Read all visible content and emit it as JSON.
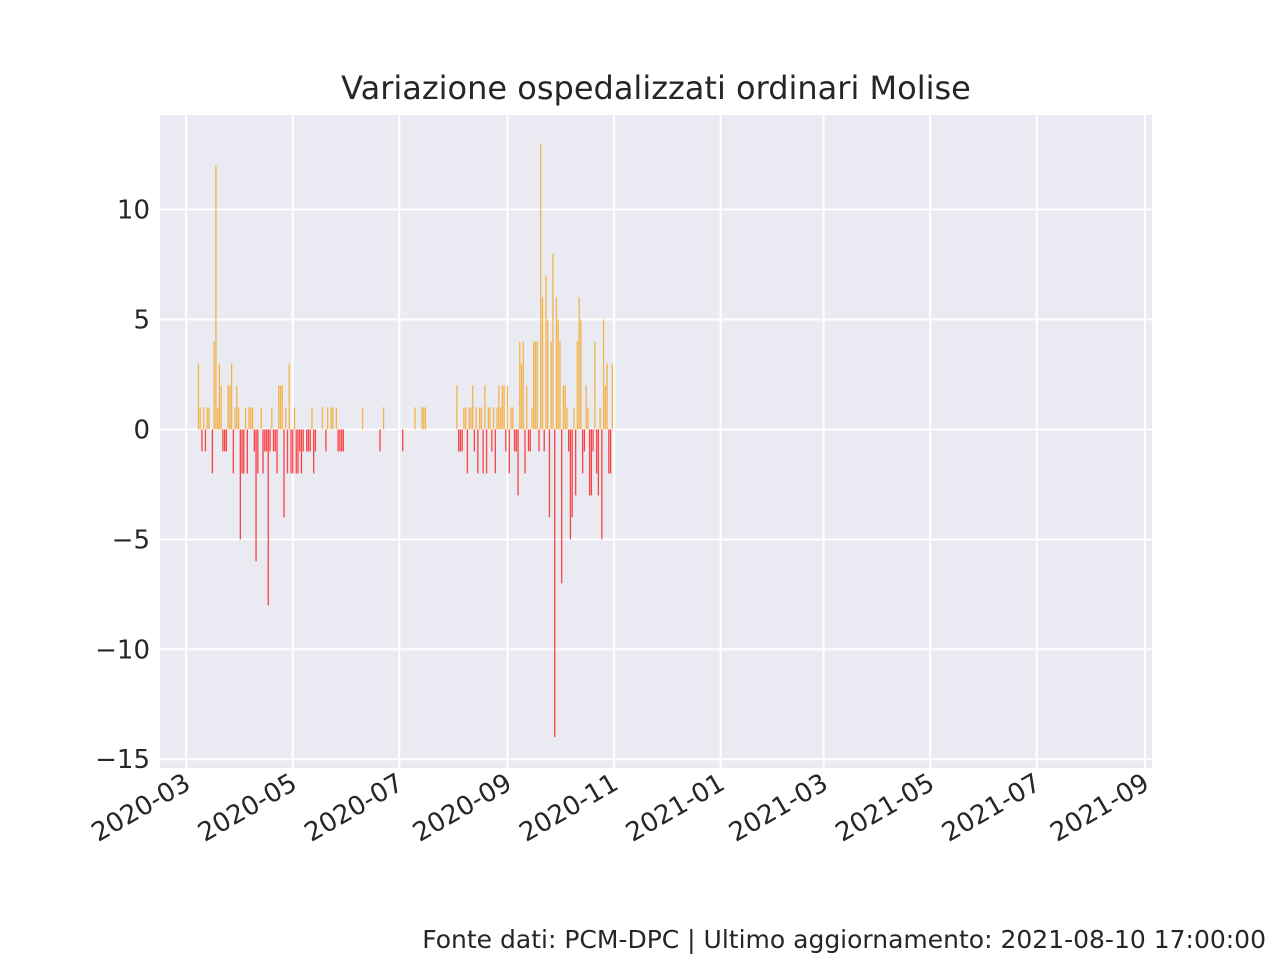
{
  "chart_data": {
    "type": "bar",
    "title": "Variazione ospedalizzati ordinari Molise",
    "xlabel": "",
    "ylabel": "",
    "x_axis": "date",
    "xlim": [
      "2020-02-15",
      "2021-09-05"
    ],
    "ylim": [
      -15.4,
      14.3
    ],
    "x_tick_labels": [
      "2020-03",
      "2020-05",
      "2020-07",
      "2020-09",
      "2020-11",
      "2021-01",
      "2021-03",
      "2021-05",
      "2021-07",
      "2021-09"
    ],
    "y_tick_values": [
      -15,
      -10,
      -5,
      0,
      5,
      10
    ],
    "y_tick_labels": [
      "−15",
      "−10",
      "−5",
      "0",
      "5",
      "10"
    ],
    "grid": true,
    "legend": "none",
    "colors": {
      "positive": "#f5a623",
      "negative": "#ff1a1a",
      "background": "#eaeaf2",
      "grid": "#ffffff"
    },
    "series": [
      {
        "values": [
          {
            "date": "2020-03-08",
            "value": 3
          },
          {
            "date": "2020-03-09",
            "value": 1
          },
          {
            "date": "2020-03-10",
            "value": -1
          },
          {
            "date": "2020-03-11",
            "value": 1
          },
          {
            "date": "2020-03-12",
            "value": -1
          },
          {
            "date": "2020-03-13",
            "value": 1
          },
          {
            "date": "2020-03-14",
            "value": 1
          },
          {
            "date": "2020-03-16",
            "value": -2
          },
          {
            "date": "2020-03-17",
            "value": 4
          },
          {
            "date": "2020-03-18",
            "value": 12
          },
          {
            "date": "2020-03-19",
            "value": 1
          },
          {
            "date": "2020-03-20",
            "value": 3
          },
          {
            "date": "2020-03-21",
            "value": 2
          },
          {
            "date": "2020-03-22",
            "value": -1
          },
          {
            "date": "2020-03-23",
            "value": -1
          },
          {
            "date": "2020-03-24",
            "value": -1
          },
          {
            "date": "2020-03-25",
            "value": 2
          },
          {
            "date": "2020-03-26",
            "value": 2
          },
          {
            "date": "2020-03-27",
            "value": 3
          },
          {
            "date": "2020-03-28",
            "value": -2
          },
          {
            "date": "2020-03-29",
            "value": 1
          },
          {
            "date": "2020-03-30",
            "value": 2
          },
          {
            "date": "2020-03-31",
            "value": 1
          },
          {
            "date": "2020-04-01",
            "value": -5
          },
          {
            "date": "2020-04-02",
            "value": -2
          },
          {
            "date": "2020-04-03",
            "value": -2
          },
          {
            "date": "2020-04-04",
            "value": 1
          },
          {
            "date": "2020-04-05",
            "value": -2
          },
          {
            "date": "2020-04-06",
            "value": 1
          },
          {
            "date": "2020-04-07",
            "value": 1
          },
          {
            "date": "2020-04-08",
            "value": 1
          },
          {
            "date": "2020-04-09",
            "value": -1
          },
          {
            "date": "2020-04-10",
            "value": -6
          },
          {
            "date": "2020-04-11",
            "value": -2
          },
          {
            "date": "2020-04-13",
            "value": 1
          },
          {
            "date": "2020-04-14",
            "value": -2
          },
          {
            "date": "2020-04-15",
            "value": -1
          },
          {
            "date": "2020-04-16",
            "value": -1
          },
          {
            "date": "2020-04-17",
            "value": -8
          },
          {
            "date": "2020-04-18",
            "value": -1
          },
          {
            "date": "2020-04-19",
            "value": 1
          },
          {
            "date": "2020-04-20",
            "value": -1
          },
          {
            "date": "2020-04-21",
            "value": -1
          },
          {
            "date": "2020-04-22",
            "value": -2
          },
          {
            "date": "2020-04-23",
            "value": 2
          },
          {
            "date": "2020-04-24",
            "value": 2
          },
          {
            "date": "2020-04-25",
            "value": 2
          },
          {
            "date": "2020-04-26",
            "value": -4
          },
          {
            "date": "2020-04-27",
            "value": 1
          },
          {
            "date": "2020-04-28",
            "value": -2
          },
          {
            "date": "2020-04-29",
            "value": 3
          },
          {
            "date": "2020-04-30",
            "value": -2
          },
          {
            "date": "2020-05-01",
            "value": -2
          },
          {
            "date": "2020-05-02",
            "value": 1
          },
          {
            "date": "2020-05-03",
            "value": -2
          },
          {
            "date": "2020-05-04",
            "value": -2
          },
          {
            "date": "2020-05-05",
            "value": -1
          },
          {
            "date": "2020-05-06",
            "value": -2
          },
          {
            "date": "2020-05-07",
            "value": -1
          },
          {
            "date": "2020-05-09",
            "value": -1
          },
          {
            "date": "2020-05-10",
            "value": -1
          },
          {
            "date": "2020-05-11",
            "value": -1
          },
          {
            "date": "2020-05-12",
            "value": 1
          },
          {
            "date": "2020-05-13",
            "value": -2
          },
          {
            "date": "2020-05-14",
            "value": -1
          },
          {
            "date": "2020-05-18",
            "value": 1
          },
          {
            "date": "2020-05-20",
            "value": -1
          },
          {
            "date": "2020-05-21",
            "value": 1
          },
          {
            "date": "2020-05-23",
            "value": 1
          },
          {
            "date": "2020-05-24",
            "value": 1
          },
          {
            "date": "2020-05-26",
            "value": 1
          },
          {
            "date": "2020-05-27",
            "value": -1
          },
          {
            "date": "2020-05-28",
            "value": -1
          },
          {
            "date": "2020-05-29",
            "value": -1
          },
          {
            "date": "2020-05-30",
            "value": -1
          },
          {
            "date": "2020-06-10",
            "value": 1
          },
          {
            "date": "2020-06-20",
            "value": -1
          },
          {
            "date": "2020-06-22",
            "value": 1
          },
          {
            "date": "2020-07-03",
            "value": -1
          },
          {
            "date": "2020-07-10",
            "value": 1
          },
          {
            "date": "2020-07-14",
            "value": 1
          },
          {
            "date": "2020-07-15",
            "value": 1
          },
          {
            "date": "2020-07-16",
            "value": 1
          },
          {
            "date": "2020-08-03",
            "value": 2
          },
          {
            "date": "2020-08-04",
            "value": -1
          },
          {
            "date": "2020-08-05",
            "value": -1
          },
          {
            "date": "2020-08-06",
            "value": -1
          },
          {
            "date": "2020-08-07",
            "value": 1
          },
          {
            "date": "2020-08-08",
            "value": 1
          },
          {
            "date": "2020-08-09",
            "value": -2
          },
          {
            "date": "2020-08-10",
            "value": 1
          },
          {
            "date": "2020-08-11",
            "value": 1
          },
          {
            "date": "2020-08-12",
            "value": 2
          },
          {
            "date": "2020-08-13",
            "value": -1
          },
          {
            "date": "2020-08-14",
            "value": 1
          },
          {
            "date": "2020-08-15",
            "value": -2
          },
          {
            "date": "2020-08-16",
            "value": 1
          },
          {
            "date": "2020-08-17",
            "value": 1
          },
          {
            "date": "2020-08-18",
            "value": -2
          },
          {
            "date": "2020-08-19",
            "value": 2
          },
          {
            "date": "2020-08-20",
            "value": -2
          },
          {
            "date": "2020-08-21",
            "value": 1
          },
          {
            "date": "2020-08-22",
            "value": 1
          },
          {
            "date": "2020-08-23",
            "value": -1
          },
          {
            "date": "2020-08-24",
            "value": 1
          },
          {
            "date": "2020-08-25",
            "value": -2
          },
          {
            "date": "2020-08-26",
            "value": 1
          },
          {
            "date": "2020-08-27",
            "value": 2
          },
          {
            "date": "2020-08-28",
            "value": 1
          },
          {
            "date": "2020-08-29",
            "value": 2
          },
          {
            "date": "2020-08-30",
            "value": 2
          },
          {
            "date": "2020-08-31",
            "value": -1
          },
          {
            "date": "2020-09-01",
            "value": 2
          },
          {
            "date": "2020-09-02",
            "value": -2
          },
          {
            "date": "2020-09-03",
            "value": 1
          },
          {
            "date": "2020-09-04",
            "value": 1
          },
          {
            "date": "2020-09-05",
            "value": -1
          },
          {
            "date": "2020-09-06",
            "value": -1
          },
          {
            "date": "2020-09-07",
            "value": -3
          },
          {
            "date": "2020-09-08",
            "value": 4
          },
          {
            "date": "2020-09-09",
            "value": 3
          },
          {
            "date": "2020-09-10",
            "value": 4
          },
          {
            "date": "2020-09-11",
            "value": -2
          },
          {
            "date": "2020-09-12",
            "value": 2
          },
          {
            "date": "2020-09-13",
            "value": -1
          },
          {
            "date": "2020-09-14",
            "value": -1
          },
          {
            "date": "2020-09-15",
            "value": 1
          },
          {
            "date": "2020-09-16",
            "value": 4
          },
          {
            "date": "2020-09-17",
            "value": 4
          },
          {
            "date": "2020-09-18",
            "value": 4
          },
          {
            "date": "2020-09-19",
            "value": -1
          },
          {
            "date": "2020-09-20",
            "value": 13
          },
          {
            "date": "2020-09-21",
            "value": 6
          },
          {
            "date": "2020-09-22",
            "value": -1
          },
          {
            "date": "2020-09-23",
            "value": 7
          },
          {
            "date": "2020-09-24",
            "value": 5
          },
          {
            "date": "2020-09-25",
            "value": -4
          },
          {
            "date": "2020-09-26",
            "value": 4
          },
          {
            "date": "2020-09-27",
            "value": 8
          },
          {
            "date": "2020-09-28",
            "value": -14
          },
          {
            "date": "2020-09-29",
            "value": 6
          },
          {
            "date": "2020-09-30",
            "value": 5
          },
          {
            "date": "2020-10-01",
            "value": 4
          },
          {
            "date": "2020-10-02",
            "value": -7
          },
          {
            "date": "2020-10-03",
            "value": 2
          },
          {
            "date": "2020-10-04",
            "value": 2
          },
          {
            "date": "2020-10-05",
            "value": 1
          },
          {
            "date": "2020-10-06",
            "value": -1
          },
          {
            "date": "2020-10-07",
            "value": -5
          },
          {
            "date": "2020-10-08",
            "value": -4
          },
          {
            "date": "2020-10-09",
            "value": 1
          },
          {
            "date": "2020-10-10",
            "value": -3
          },
          {
            "date": "2020-10-11",
            "value": 4
          },
          {
            "date": "2020-10-12",
            "value": 6
          },
          {
            "date": "2020-10-13",
            "value": 5
          },
          {
            "date": "2020-10-14",
            "value": -2
          },
          {
            "date": "2020-10-15",
            "value": -1
          },
          {
            "date": "2020-10-16",
            "value": 2
          },
          {
            "date": "2020-10-17",
            "value": 1
          },
          {
            "date": "2020-10-18",
            "value": -3
          },
          {
            "date": "2020-10-19",
            "value": -3
          },
          {
            "date": "2020-10-20",
            "value": -1
          },
          {
            "date": "2020-10-21",
            "value": 4
          },
          {
            "date": "2020-10-22",
            "value": -2
          },
          {
            "date": "2020-10-23",
            "value": -3
          },
          {
            "date": "2020-10-24",
            "value": 1
          },
          {
            "date": "2020-10-25",
            "value": -5
          },
          {
            "date": "2020-10-26",
            "value": 5
          },
          {
            "date": "2020-10-27",
            "value": 2
          },
          {
            "date": "2020-10-28",
            "value": 3
          },
          {
            "date": "2020-10-29",
            "value": -2
          },
          {
            "date": "2020-10-30",
            "value": -2
          },
          {
            "date": "2020-10-31",
            "value": 3
          }
        ]
      }
    ]
  },
  "footer": "Fonte dati: PCM-DPC | Ultimo aggiornamento: 2021-08-10 17:00:00"
}
